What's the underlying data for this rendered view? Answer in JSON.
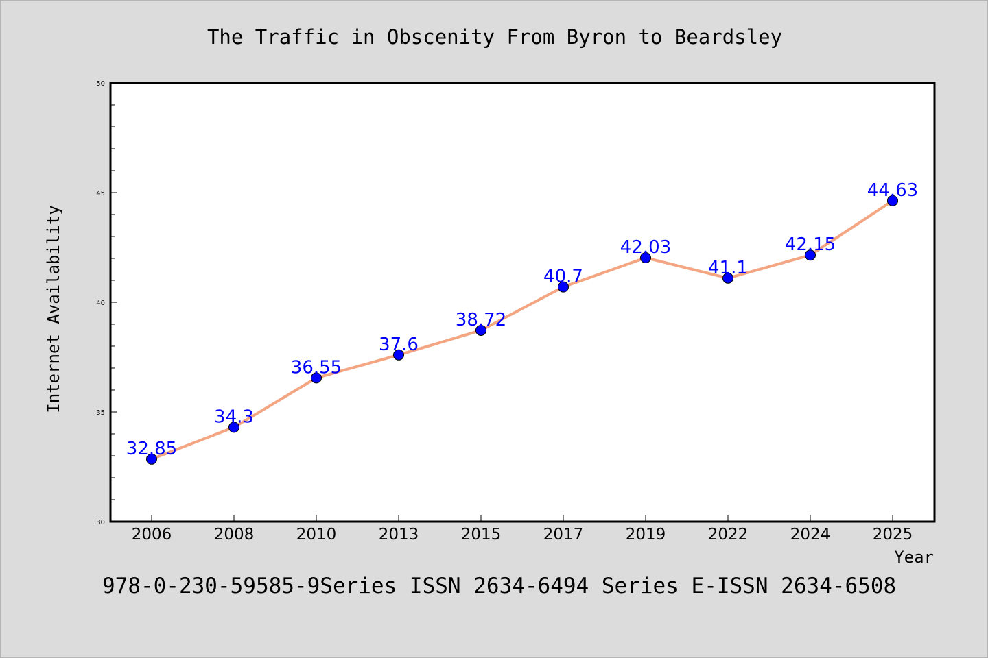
{
  "chart_data": {
    "type": "line",
    "title": "The Traffic in Obscenity From Byron to Beardsley",
    "xlabel": "Year",
    "ylabel": "Internet Availability",
    "categories": [
      "2006",
      "2008",
      "2010",
      "2013",
      "2015",
      "2017",
      "2019",
      "2022",
      "2024",
      "2025"
    ],
    "series": [
      {
        "values": [
          32.85,
          34.3,
          36.55,
          37.6,
          38.72,
          40.7,
          42.03,
          41.1,
          42.15,
          44.63
        ],
        "data_labels": [
          "32.85",
          "34.3",
          "36.55",
          "37.6",
          "38.72",
          "40.7",
          "42.03",
          "41.1",
          "42.15",
          "44.63"
        ]
      }
    ],
    "ylim": [
      30,
      50
    ],
    "yticks": [
      "30",
      "35",
      "40",
      "45",
      "50"
    ],
    "grid": false,
    "legend": "none",
    "colors": {
      "line": "#f4a582",
      "marker": "#0000ff",
      "data_label": "#0000ff",
      "background": "#dcdcdc",
      "plot_background": "#ffffff"
    }
  },
  "footer": {
    "text": "978-0-230-59585-9Series ISSN 2634-6494 Series E-ISSN 2634-6508"
  }
}
